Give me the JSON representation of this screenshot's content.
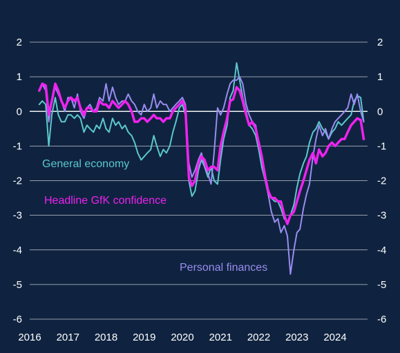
{
  "chart_data": {
    "type": "line",
    "ylim": [
      -6,
      2
    ],
    "y_ticks": [
      2,
      1,
      0,
      -1,
      -2,
      -3,
      -4,
      -5,
      -6
    ],
    "x_ticks": [
      "2016",
      "2017",
      "2018",
      "2019",
      "2020",
      "2021",
      "2022",
      "2023",
      "2024"
    ],
    "xlim": [
      2016.0,
      2024.85
    ],
    "grid": true,
    "zero_line": true,
    "colors": {
      "background": "#0f2340",
      "grid": "#ffffff",
      "general_economy": "#5cc8cc",
      "headline": "#ee22ee",
      "personal_finances": "#9b8cf0"
    },
    "series": [
      {
        "name": "General economy",
        "key": "general_economy",
        "stroke_width": 2,
        "x": [
          2016.25,
          2016.33,
          2016.42,
          2016.5,
          2016.58,
          2016.67,
          2016.75,
          2016.83,
          2016.92,
          2017.0,
          2017.08,
          2017.17,
          2017.25,
          2017.33,
          2017.42,
          2017.5,
          2017.58,
          2017.67,
          2017.75,
          2017.83,
          2017.92,
          2018.0,
          2018.08,
          2018.17,
          2018.25,
          2018.33,
          2018.42,
          2018.5,
          2018.58,
          2018.67,
          2018.75,
          2018.83,
          2018.92,
          2019.0,
          2019.08,
          2019.17,
          2019.25,
          2019.33,
          2019.42,
          2019.5,
          2019.58,
          2019.67,
          2019.75,
          2019.83,
          2019.92,
          2020.0,
          2020.08,
          2020.17,
          2020.25,
          2020.33,
          2020.42,
          2020.5,
          2020.58,
          2020.67,
          2020.75,
          2020.83,
          2020.92,
          2021.0,
          2021.08,
          2021.17,
          2021.25,
          2021.33,
          2021.42,
          2021.5,
          2021.58,
          2021.67,
          2021.75,
          2021.83,
          2021.92,
          2022.0,
          2022.08,
          2022.17,
          2022.25,
          2022.33,
          2022.42,
          2022.5,
          2022.58,
          2022.67,
          2022.75,
          2022.83,
          2022.92,
          2023.0,
          2023.08,
          2023.17,
          2023.25,
          2023.33,
          2023.42,
          2023.5,
          2023.58,
          2023.67,
          2023.75,
          2023.83,
          2023.92,
          2024.0,
          2024.08,
          2024.17,
          2024.25,
          2024.33,
          2024.42,
          2024.5,
          2024.58,
          2024.67,
          2024.75
        ],
        "y": [
          0.2,
          0.3,
          0.2,
          -1.0,
          -0.1,
          0.4,
          -0.1,
          -0.3,
          -0.3,
          -0.1,
          -0.1,
          -0.2,
          -0.1,
          -0.2,
          -0.6,
          -0.4,
          -0.5,
          -0.6,
          -0.4,
          -0.5,
          -0.2,
          -0.5,
          -0.6,
          -0.2,
          -0.4,
          -0.3,
          -0.5,
          -0.4,
          -0.6,
          -0.7,
          -0.9,
          -1.2,
          -1.4,
          -1.3,
          -1.2,
          -1.1,
          -0.7,
          -1.0,
          -1.3,
          -1.1,
          -1.2,
          -1.0,
          -0.6,
          -0.3,
          0.1,
          0.2,
          -0.1,
          -2.0,
          -2.45,
          -2.3,
          -1.7,
          -1.4,
          -1.6,
          -1.9,
          -1.6,
          -2.0,
          -2.1,
          -1.4,
          -0.8,
          -0.4,
          0.4,
          0.6,
          1.4,
          0.9,
          0.4,
          0.0,
          -0.4,
          -0.5,
          -0.7,
          -1.1,
          -1.6,
          -2.0,
          -2.4,
          -2.5,
          -2.6,
          -2.6,
          -2.8,
          -3.1,
          -3.2,
          -3.0,
          -2.7,
          -2.2,
          -1.8,
          -1.5,
          -1.3,
          -0.9,
          -0.6,
          -0.5,
          -0.3,
          -0.5,
          -0.6,
          -0.8,
          -0.6,
          -0.5,
          -0.3,
          -0.4,
          -0.3,
          -0.2,
          -0.1,
          0.3,
          0.45,
          0.4,
          -0.3
        ]
      },
      {
        "name": "Personal finances",
        "key": "personal_finances",
        "stroke_width": 2,
        "x": [
          2016.25,
          2016.33,
          2016.42,
          2016.5,
          2016.58,
          2016.67,
          2016.75,
          2016.83,
          2016.92,
          2017.0,
          2017.08,
          2017.17,
          2017.25,
          2017.33,
          2017.42,
          2017.5,
          2017.58,
          2017.67,
          2017.75,
          2017.83,
          2017.92,
          2018.0,
          2018.08,
          2018.17,
          2018.25,
          2018.33,
          2018.42,
          2018.5,
          2018.58,
          2018.67,
          2018.75,
          2018.83,
          2018.92,
          2019.0,
          2019.08,
          2019.17,
          2019.25,
          2019.33,
          2019.42,
          2019.5,
          2019.58,
          2019.67,
          2019.75,
          2019.83,
          2019.92,
          2020.0,
          2020.08,
          2020.17,
          2020.25,
          2020.33,
          2020.42,
          2020.5,
          2020.58,
          2020.67,
          2020.75,
          2020.83,
          2020.92,
          2021.0,
          2021.08,
          2021.17,
          2021.25,
          2021.33,
          2021.42,
          2021.5,
          2021.58,
          2021.67,
          2021.75,
          2021.83,
          2021.92,
          2022.0,
          2022.08,
          2022.17,
          2022.25,
          2022.33,
          2022.42,
          2022.5,
          2022.58,
          2022.67,
          2022.75,
          2022.83,
          2022.92,
          2023.0,
          2023.08,
          2023.17,
          2023.25,
          2023.33,
          2023.42,
          2023.5,
          2023.58,
          2023.67,
          2023.75,
          2023.83,
          2023.92,
          2024.0,
          2024.08,
          2024.17,
          2024.25,
          2024.33,
          2024.42,
          2024.5,
          2024.58,
          2024.67,
          2024.75
        ],
        "y": [
          0.6,
          0.8,
          0.6,
          -0.3,
          0.3,
          0.7,
          0.5,
          0.3,
          0.0,
          0.4,
          0.4,
          0.1,
          0.5,
          0.0,
          -0.2,
          0.1,
          0.2,
          0.0,
          0.1,
          0.4,
          0.3,
          0.8,
          0.3,
          0.7,
          0.4,
          0.2,
          0.3,
          0.3,
          0.5,
          0.3,
          0.2,
          0.0,
          -0.1,
          0.2,
          0.0,
          0.1,
          0.5,
          0.1,
          0.3,
          0.2,
          0.2,
          0.0,
          0.1,
          0.2,
          0.3,
          0.4,
          0.2,
          -1.5,
          -1.9,
          -1.7,
          -1.4,
          -1.2,
          -1.6,
          -1.8,
          -2.1,
          -1.2,
          0.1,
          -0.1,
          0.1,
          0.5,
          0.8,
          0.9,
          0.9,
          1.0,
          0.8,
          0.2,
          -0.1,
          -0.3,
          -0.4,
          -0.9,
          -1.3,
          -1.8,
          -2.4,
          -2.9,
          -3.2,
          -3.1,
          -3.5,
          -3.3,
          -3.6,
          -4.7,
          -4.0,
          -3.5,
          -3.4,
          -2.8,
          -2.4,
          -2.1,
          -1.3,
          -0.8,
          -0.4,
          -0.7,
          -0.5,
          -0.8,
          -0.5,
          -0.3,
          -0.2,
          -0.1,
          0.0,
          0.1,
          0.5,
          0.2,
          0.5,
          0.0,
          -0.3
        ]
      },
      {
        "name": "Headline GfK confidence",
        "key": "headline",
        "stroke_width": 3.5,
        "x": [
          2016.25,
          2016.33,
          2016.42,
          2016.5,
          2016.58,
          2016.67,
          2016.75,
          2016.83,
          2016.92,
          2017.0,
          2017.08,
          2017.17,
          2017.25,
          2017.33,
          2017.42,
          2017.5,
          2017.58,
          2017.67,
          2017.75,
          2017.83,
          2017.92,
          2018.0,
          2018.08,
          2018.17,
          2018.25,
          2018.33,
          2018.42,
          2018.5,
          2018.58,
          2018.67,
          2018.75,
          2018.83,
          2018.92,
          2019.0,
          2019.08,
          2019.17,
          2019.25,
          2019.33,
          2019.42,
          2019.5,
          2019.58,
          2019.67,
          2019.75,
          2019.83,
          2019.92,
          2020.0,
          2020.08,
          2020.17,
          2020.25,
          2020.33,
          2020.42,
          2020.5,
          2020.58,
          2020.67,
          2020.75,
          2020.83,
          2020.92,
          2021.0,
          2021.08,
          2021.17,
          2021.25,
          2021.33,
          2021.42,
          2021.5,
          2021.58,
          2021.67,
          2021.75,
          2021.83,
          2021.92,
          2022.0,
          2022.08,
          2022.17,
          2022.25,
          2022.33,
          2022.42,
          2022.5,
          2022.58,
          2022.67,
          2022.75,
          2022.83,
          2022.92,
          2023.0,
          2023.08,
          2023.17,
          2023.25,
          2023.33,
          2023.42,
          2023.5,
          2023.58,
          2023.67,
          2023.75,
          2023.83,
          2023.92,
          2024.0,
          2024.08,
          2024.17,
          2024.25,
          2024.33,
          2024.42,
          2024.5,
          2024.58,
          2024.67,
          2024.75
        ],
        "y": [
          0.6,
          0.8,
          0.75,
          -0.1,
          0.3,
          0.8,
          0.6,
          0.3,
          0.1,
          0.3,
          0.4,
          0.3,
          0.4,
          0.1,
          -0.1,
          0.1,
          0.1,
          0.0,
          0.0,
          0.3,
          0.2,
          0.2,
          0.1,
          0.3,
          0.2,
          0.1,
          0.2,
          0.3,
          0.2,
          0.0,
          -0.3,
          -0.3,
          -0.2,
          -0.2,
          -0.3,
          -0.2,
          -0.1,
          -0.2,
          -0.2,
          -0.3,
          -0.2,
          -0.2,
          0.0,
          0.1,
          0.2,
          0.3,
          0.1,
          -1.9,
          -2.15,
          -2.0,
          -1.5,
          -1.3,
          -1.4,
          -1.7,
          -1.6,
          -1.6,
          -1.7,
          -1.0,
          -0.6,
          -0.2,
          0.3,
          0.35,
          0.7,
          0.6,
          0.3,
          -0.1,
          -0.4,
          -0.3,
          -0.5,
          -0.9,
          -1.3,
          -1.9,
          -2.3,
          -2.5,
          -2.5,
          -2.6,
          -2.6,
          -3.0,
          -3.25,
          -3.0,
          -2.9,
          -2.6,
          -2.3,
          -2.0,
          -1.7,
          -1.4,
          -1.2,
          -1.5,
          -1.1,
          -1.3,
          -1.2,
          -1.0,
          -0.9,
          -1.0,
          -0.9,
          -0.8,
          -0.8,
          -0.6,
          -0.4,
          -0.3,
          -0.2,
          -0.25,
          -0.8
        ]
      }
    ],
    "labels": {
      "general_economy": "General economy",
      "headline": "Headline GfK confidence",
      "personal_finances": "Personal finances"
    }
  }
}
